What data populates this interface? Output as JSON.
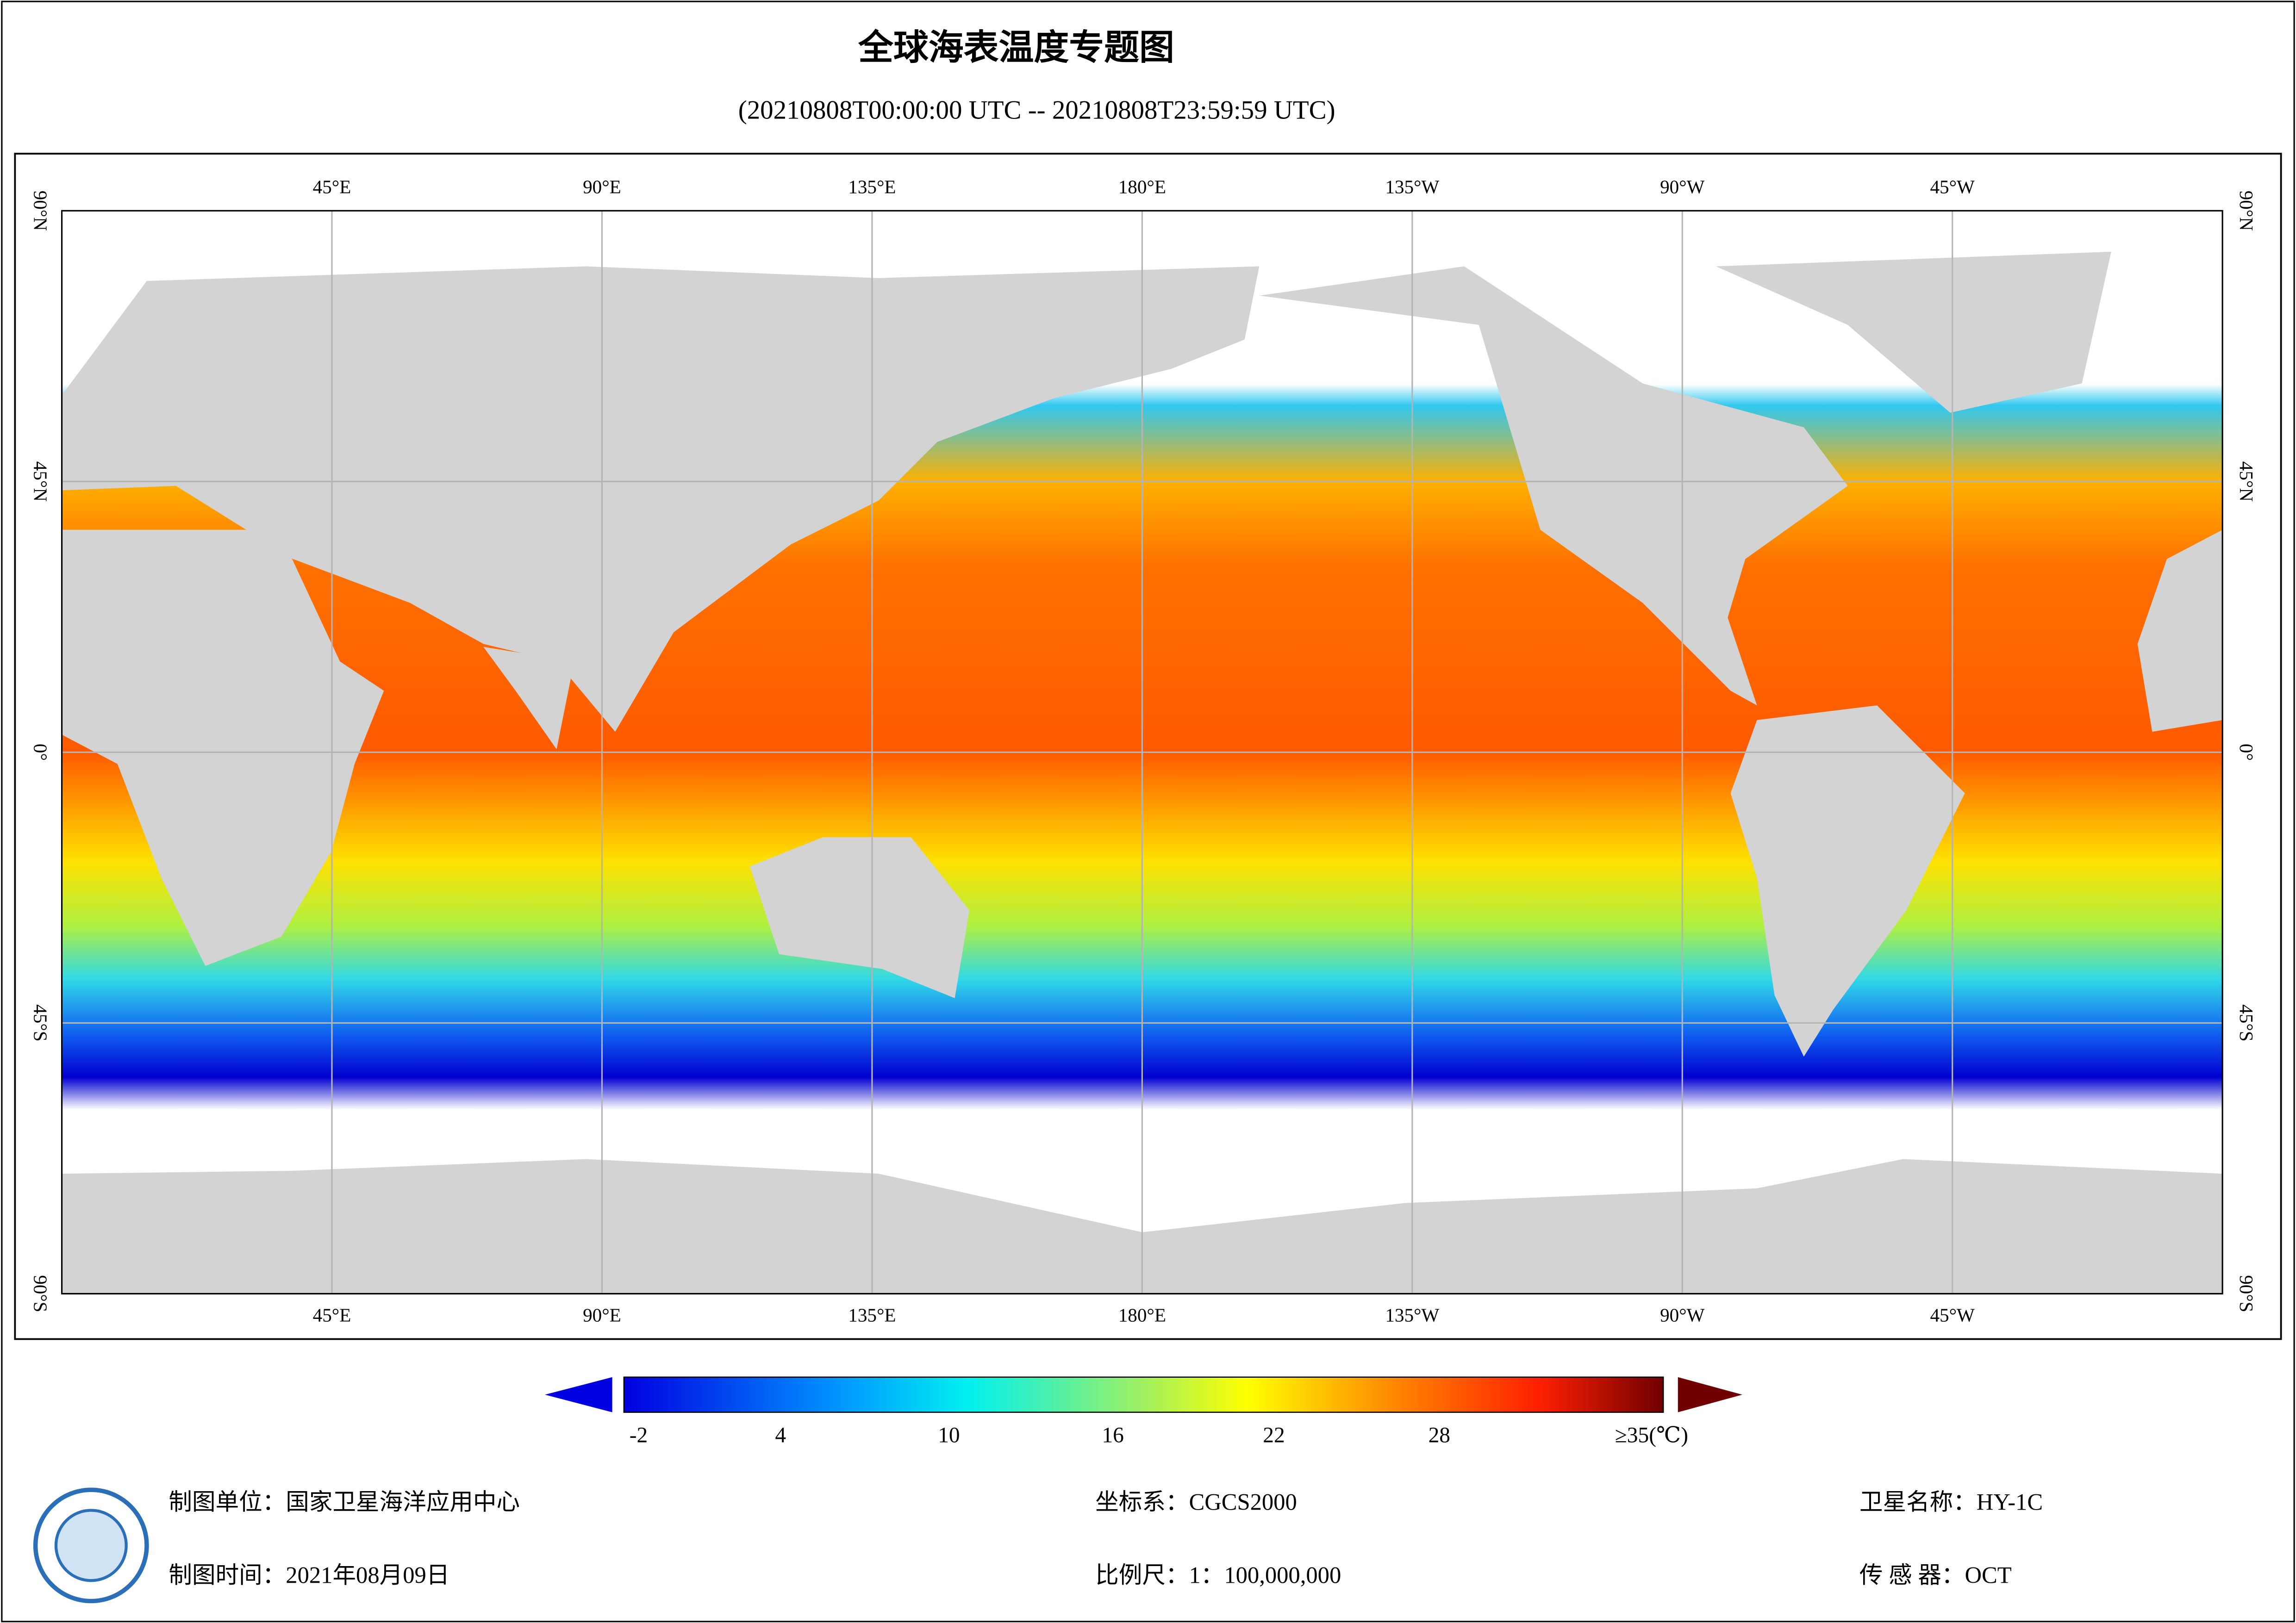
{
  "header": {
    "title": "全球海表温度专题图",
    "subtitle": "(20210808T00:00:00 UTC -- 20210808T23:59:59 UTC)"
  },
  "map": {
    "lon_labels": [
      "45°E",
      "90°E",
      "135°E",
      "180°E",
      "135°W",
      "90°W",
      "45°W"
    ],
    "lat_labels": [
      "90°N",
      "45°N",
      "0°",
      "45°S",
      "90°S"
    ]
  },
  "colorbar": {
    "labels": [
      "-2",
      "4",
      "10",
      "16",
      "22",
      "28",
      "≥35(℃)"
    ]
  },
  "footer": {
    "unit": "制图单位：国家卫星海洋应用中心",
    "date": "制图时间：2021年08月09日",
    "crs": "坐标系：CGCS2000",
    "scale": "比例尺：1：100,000,000",
    "satellite": "卫星名称：HY-1C",
    "sensor": "传 感 器：OCT"
  }
}
